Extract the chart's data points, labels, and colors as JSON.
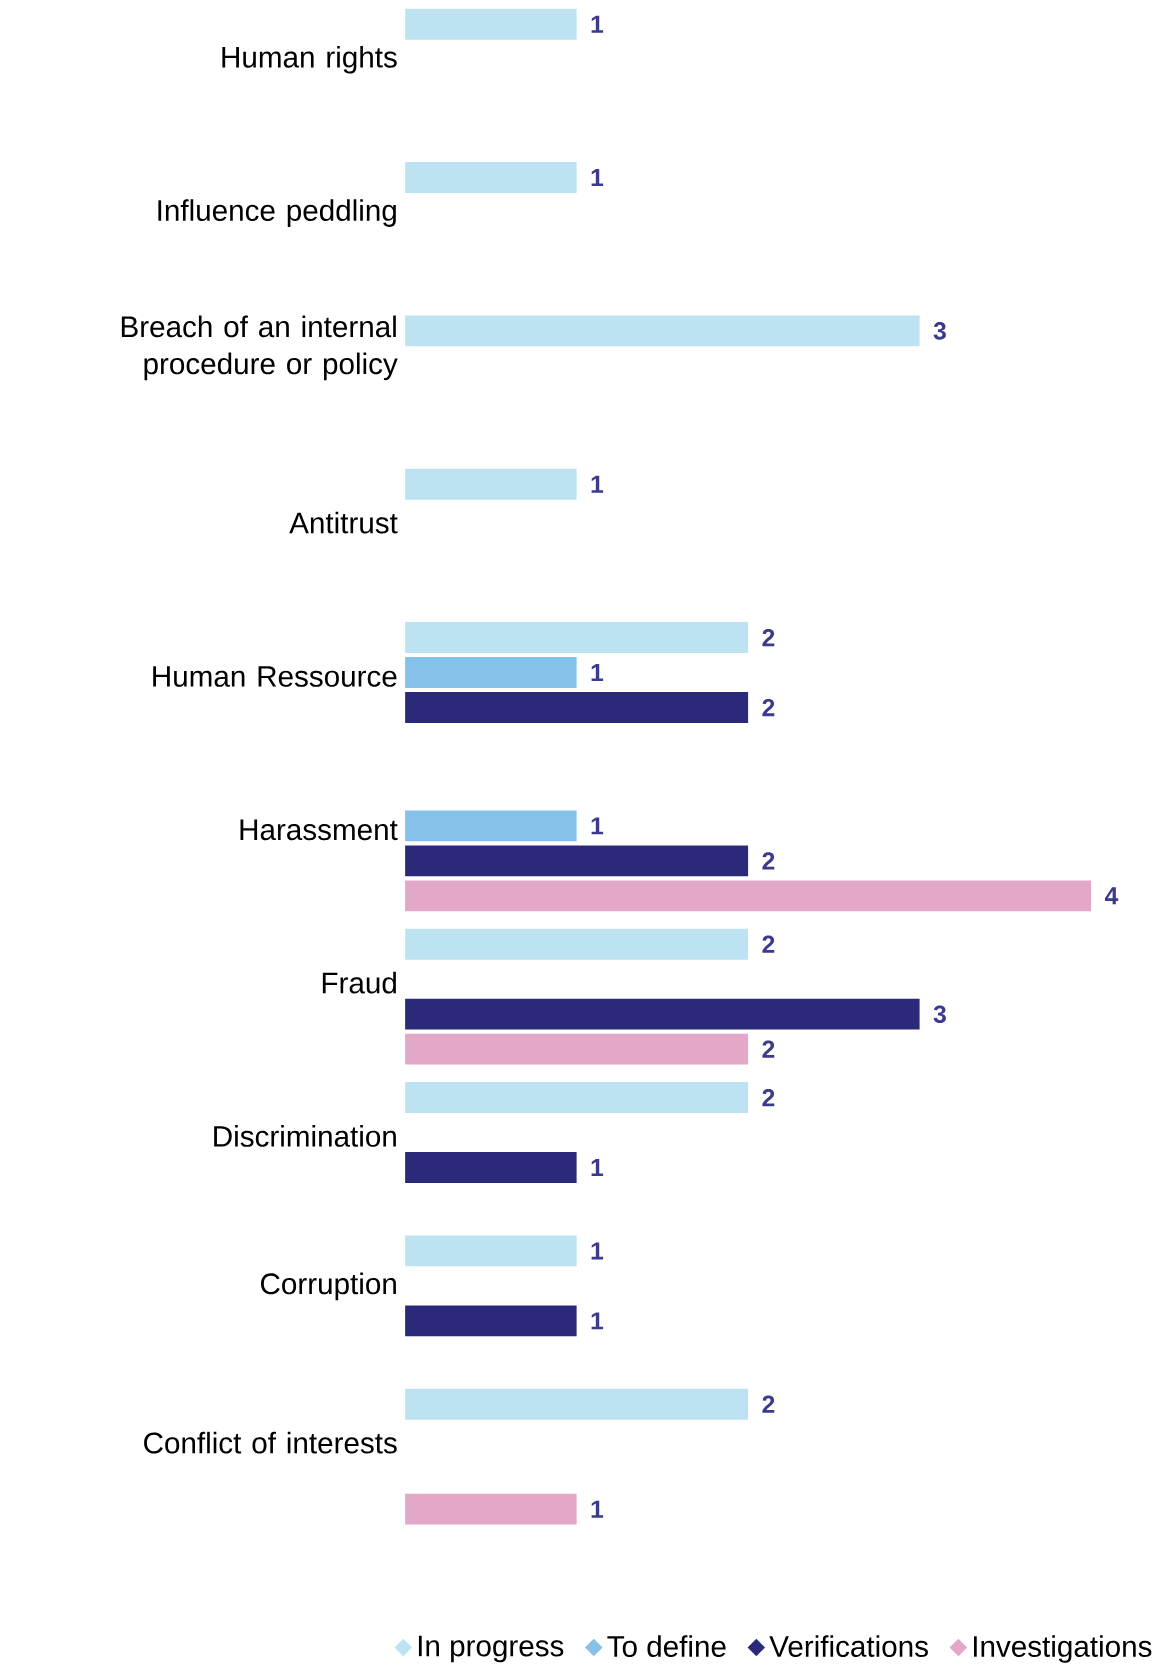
{
  "chart_data": {
    "type": "bar",
    "orientation": "horizontal",
    "categories": [
      "Human rights",
      "Influence peddling",
      "Breach of an internal procedure or policy",
      "Antitrust",
      "Human Ressource",
      "Harassment",
      "Fraud",
      "Discrimination",
      "Corruption",
      "Conflict of interests"
    ],
    "series": [
      {
        "name": "In progress",
        "color": "#bde3f2",
        "values": [
          1,
          1,
          3,
          1,
          2,
          null,
          2,
          2,
          1,
          2
        ]
      },
      {
        "name": "To define",
        "color": "#85c1e9",
        "values": [
          null,
          null,
          null,
          null,
          1,
          1,
          null,
          null,
          null,
          null
        ]
      },
      {
        "name": "Verifications",
        "color": "#2b2a7a",
        "values": [
          null,
          null,
          null,
          null,
          2,
          2,
          3,
          1,
          1,
          null
        ]
      },
      {
        "name": "Investigations",
        "color": "#e3a8c8",
        "values": [
          null,
          null,
          null,
          null,
          null,
          4,
          2,
          null,
          null,
          1
        ]
      }
    ],
    "data_labels": true,
    "legend": "bottom"
  }
}
